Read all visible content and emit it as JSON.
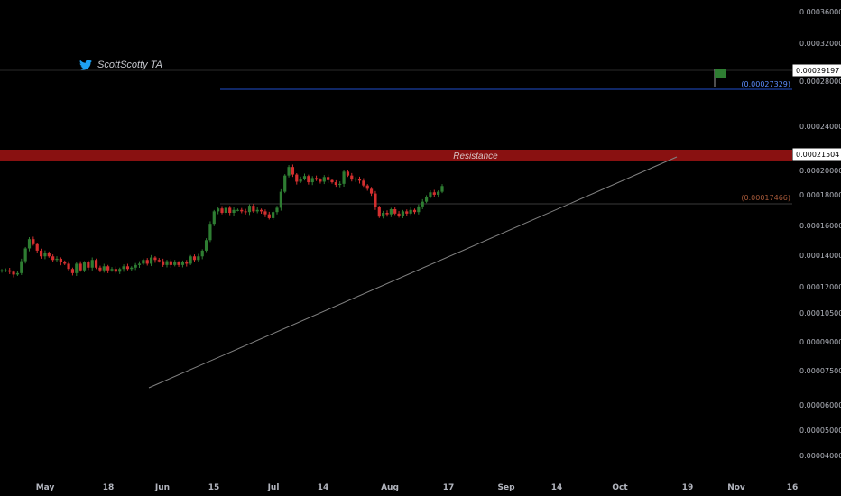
{
  "attribution": {
    "icon": "twitter-bird-icon",
    "text": "ScottScotty TA"
  },
  "colors": {
    "background": "#000000",
    "up": "#2e7d32",
    "down": "#d32f2f",
    "resistance": "#a11414",
    "trendline": "#808080",
    "target_line": "#2962ff",
    "flag": "#2e7d32"
  },
  "chart_data": {
    "type": "candlestick",
    "y_scale": "log",
    "ylim": [
      3.7e-05,
      3.8e-05
    ],
    "y_ticks": [
      "0.00036000",
      "0.00032000",
      "0.00028000",
      "0.00024000",
      "0.00020000",
      "0.00018000",
      "0.00016000",
      "0.00014000",
      "0.00012000",
      "0.00010500",
      "0.00009000",
      "0.00007500",
      "0.00006000",
      "0.00005000",
      "0.00004000"
    ],
    "x_ticks": [
      "May",
      "18",
      "Jun",
      "15",
      "Jul",
      "14",
      "Aug",
      "17",
      "Sep",
      "14",
      "Oct",
      "19",
      "Nov",
      "16"
    ],
    "price_tags": {
      "current_high": "0.00029197",
      "target": "(0.00027329)",
      "resistance": "0.00021504",
      "recent_high": "(0.00017466)"
    },
    "annotations": {
      "resistance_label": "Resistance"
    },
    "close_series": [
      6.8,
      6.8,
      6.7,
      6.5,
      6.6,
      7.5,
      8.6,
      9.5,
      9.0,
      8.4,
      7.9,
      8.2,
      7.9,
      7.6,
      7.7,
      7.4,
      7.3,
      6.9,
      6.6,
      7.3,
      6.8,
      7.4,
      7.0,
      7.6,
      7.0,
      6.8,
      7.1,
      6.8,
      6.9,
      6.7,
      6.9,
      7.1,
      6.9,
      7.0,
      7.2,
      7.3,
      7.6,
      7.3,
      7.8,
      7.6,
      7.5,
      7.2,
      7.5,
      7.2,
      7.4,
      7.2,
      7.4,
      7.3,
      7.9,
      7.6,
      7.9,
      8.4,
      9.4,
      11.2,
      12.8,
      13.2,
      12.6,
      13.3,
      12.6,
      13.0,
      13.0,
      12.8,
      12.7,
      13.6,
      12.8,
      13.0,
      12.8,
      12.4,
      11.9,
      12.7,
      13.3,
      15.8,
      18.8,
      20.6,
      19.0,
      17.6,
      18.2,
      18.7,
      17.5,
      18.3,
      18.0,
      17.6,
      18.5,
      17.9,
      17.5,
      17.0,
      17.2,
      19.6,
      18.8,
      18.0,
      18.2,
      17.8,
      16.9,
      16.3,
      15.5,
      13.4,
      12.1,
      12.6,
      12.4,
      13.1,
      12.5,
      12.2,
      12.8,
      12.5,
      13.0,
      12.7,
      13.5,
      14.2,
      15.0,
      15.7,
      15.3,
      15.8,
      16.8
    ]
  }
}
